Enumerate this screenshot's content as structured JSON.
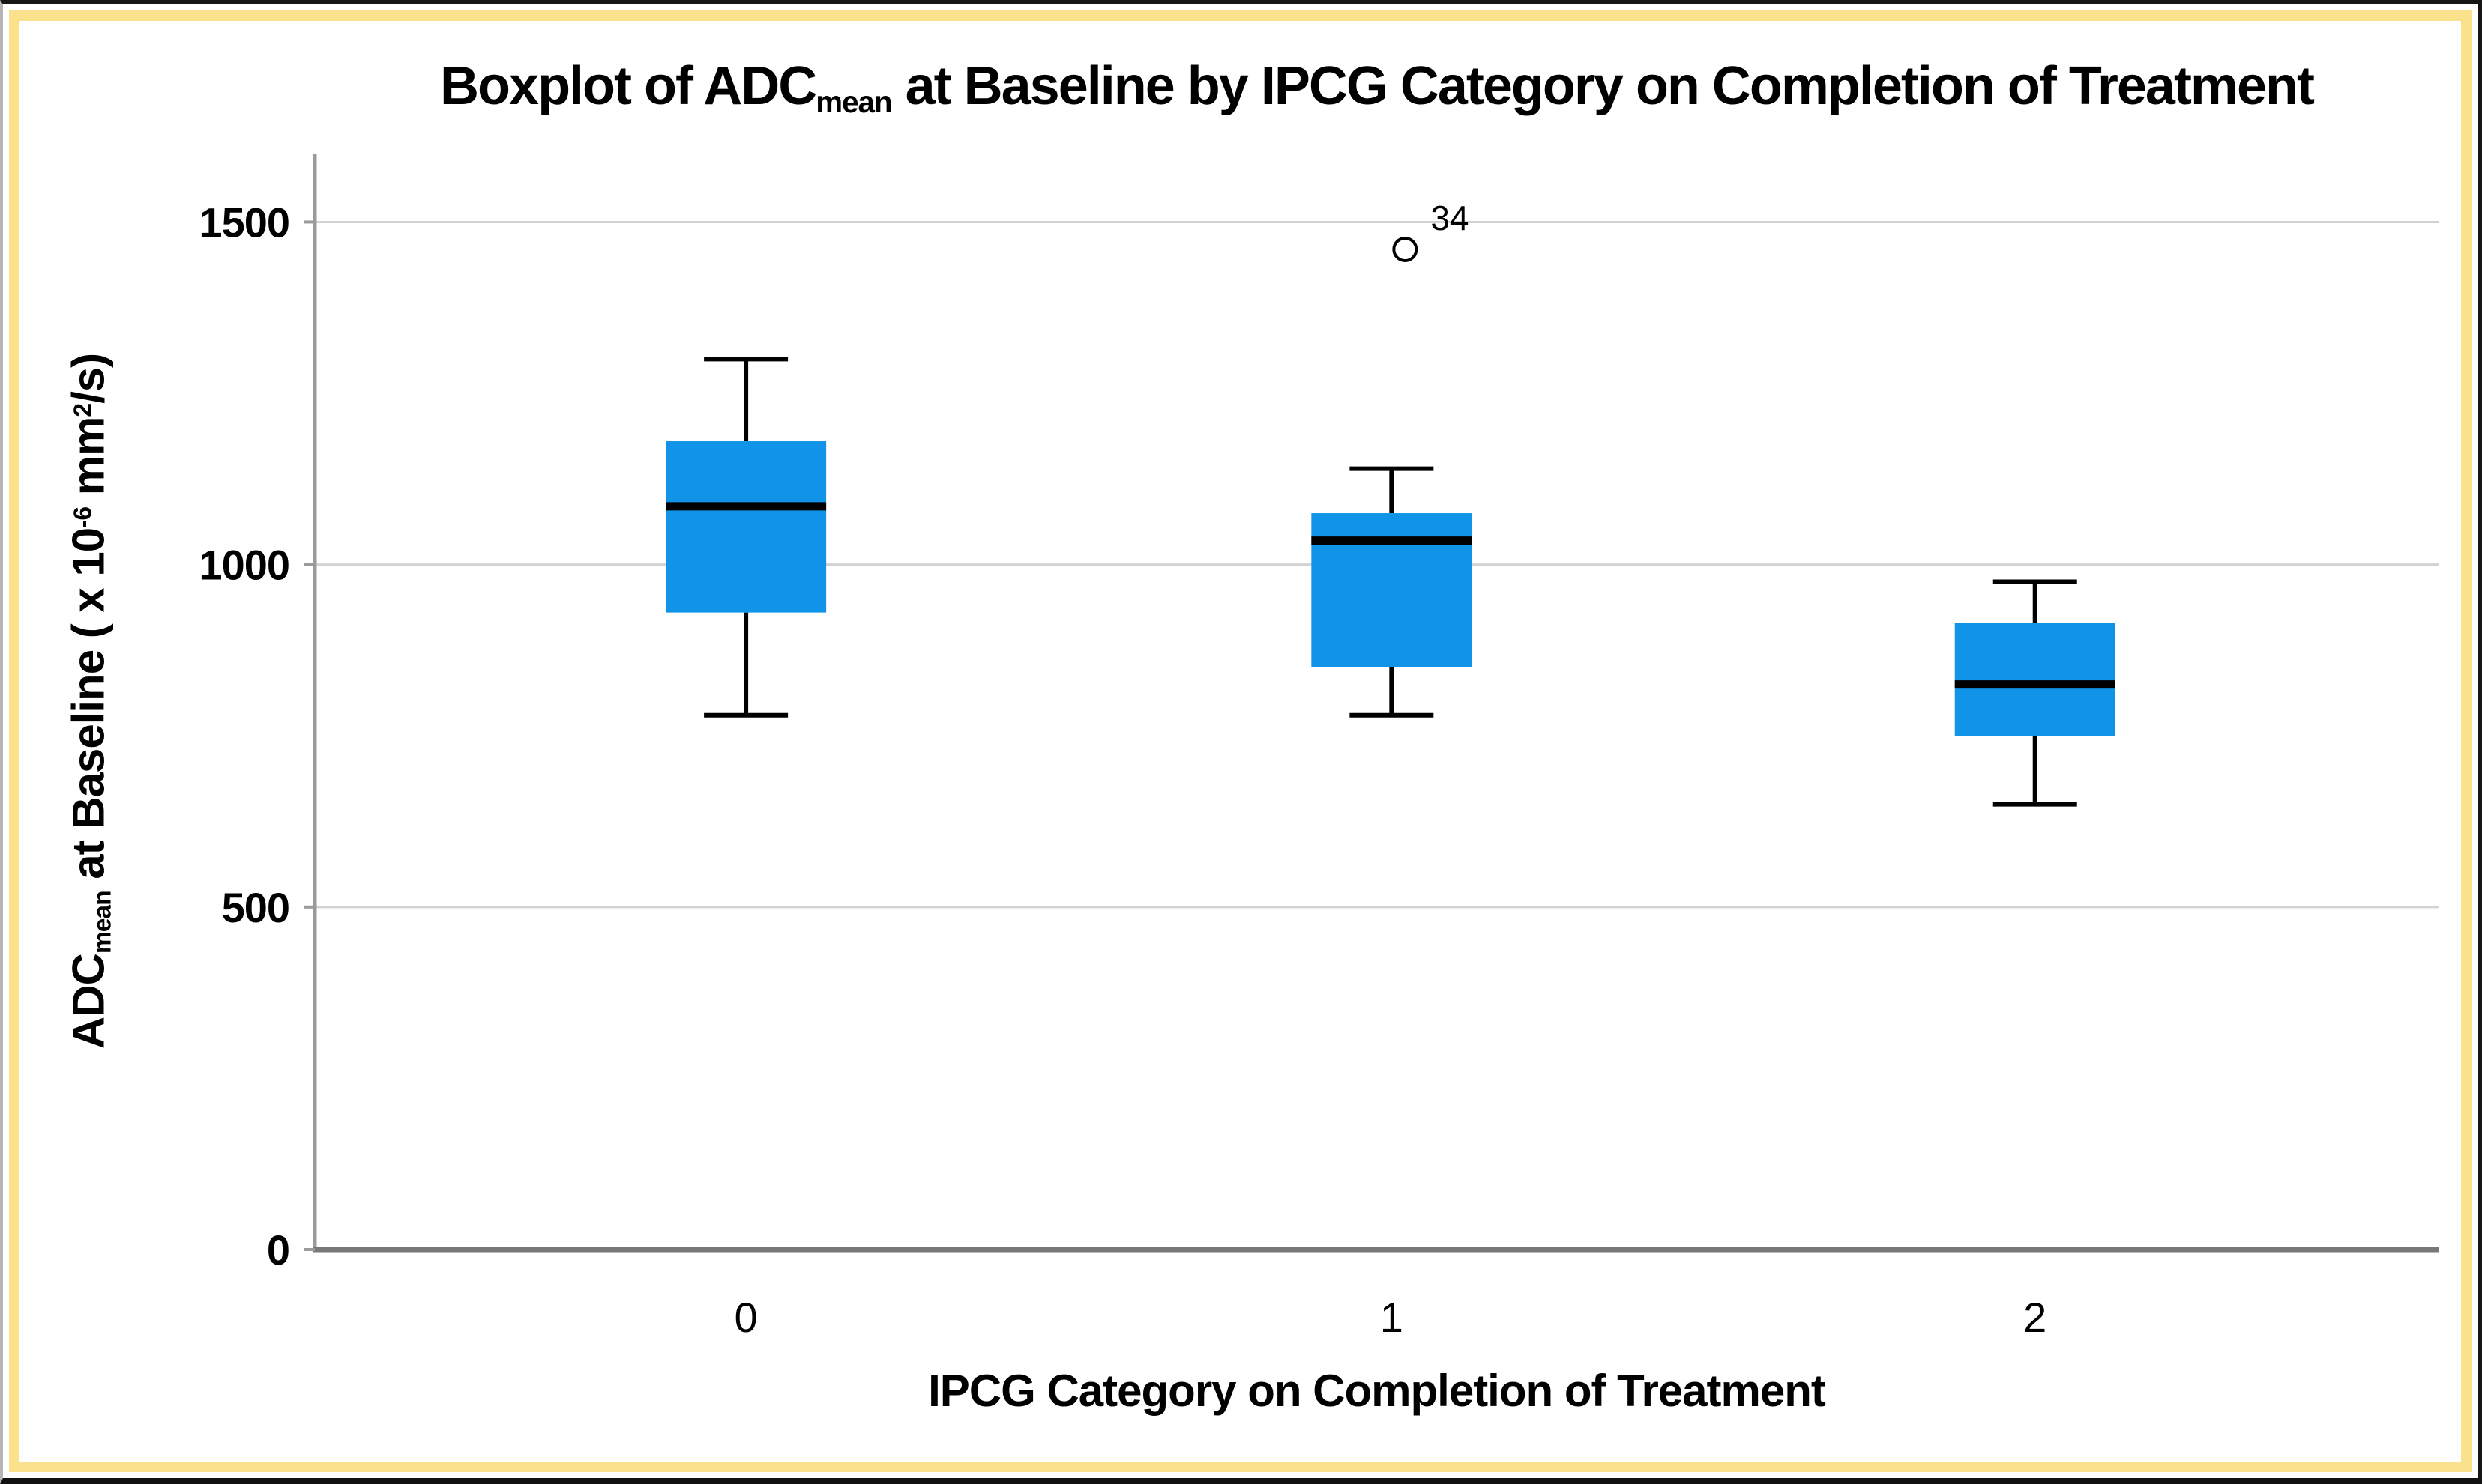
{
  "title": {
    "p1": "Boxplot of ADC",
    "sub": "mean",
    "p2": " at Baseline by IPCG Category on Completion of Treatment"
  },
  "y_axis_label": {
    "p1": "ADC",
    "sub1": "mean",
    "p2": " at Baseline ( x 10",
    "sup1": "-6",
    "p3": " mm",
    "sup2": "2",
    "p4": "/s)"
  },
  "x_axis_label": {
    "text": "IPCG Category on Completion of Treatment"
  },
  "frame": {
    "border_dark": "#161616",
    "border_left": "#b5b5b5",
    "border_yellow": "#fae28c",
    "background": "#ffffff"
  },
  "chart_data": {
    "type": "boxplot",
    "title": "Boxplot of ADC_mean at Baseline by IPCG Category on Completion of Treatment",
    "xlabel": "IPCG Category on Completion of Treatment",
    "ylabel": "ADC_mean at Baseline ( x 10^-6 mm^2/s)",
    "categories": [
      "0",
      "1",
      "2"
    ],
    "ylim": [
      0,
      1600
    ],
    "yticks": [
      0,
      500,
      1000,
      1500
    ],
    "gridlines": [
      500,
      1000,
      1500
    ],
    "grid": true,
    "legend": false,
    "series": [
      {
        "category": "0",
        "whisker_low": 780,
        "q1": 930,
        "median": 1085,
        "q3": 1180,
        "whisker_high": 1300,
        "outliers": []
      },
      {
        "category": "1",
        "whisker_low": 780,
        "q1": 850,
        "median": 1035,
        "q3": 1075,
        "whisker_high": 1140,
        "outliers": [
          {
            "value": 1460,
            "label": "34"
          }
        ]
      },
      {
        "category": "2",
        "whisker_low": 650,
        "q1": 750,
        "median": 825,
        "q3": 915,
        "whisker_high": 975,
        "outliers": []
      }
    ],
    "colors": {
      "box_fill": "#1193e8",
      "median": "#000000",
      "whisker": "#000000",
      "grid": "#d2d2d2",
      "y_axis": "#9a9a9a",
      "x_axis": "#787878",
      "outlier_stroke": "#000000",
      "outlier_fill": "#ffffff",
      "text": "#000000"
    }
  }
}
